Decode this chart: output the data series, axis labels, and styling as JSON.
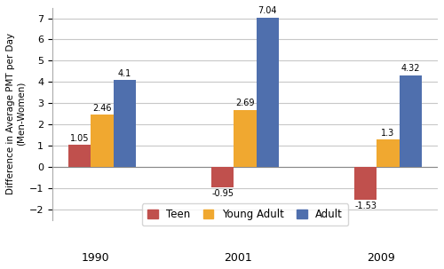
{
  "years": [
    "1990",
    "2001",
    "2009"
  ],
  "groups": [
    "Teen",
    "Young Adult",
    "Adult"
  ],
  "values": {
    "1990": [
      1.05,
      2.46,
      4.1
    ],
    "2001": [
      -0.95,
      2.69,
      7.04
    ],
    "2009": [
      -1.53,
      1.3,
      4.32
    ]
  },
  "bar_colors": [
    "#c0504d",
    "#f0a830",
    "#4f6fad"
  ],
  "ylabel": "Difference in Average PMT per Day\n(Men-Women)",
  "ylim": [
    -2.5,
    7.5
  ],
  "yticks": [
    -2,
    -1,
    0,
    1,
    2,
    3,
    4,
    5,
    6,
    7
  ],
  "legend_labels": [
    "Teen",
    "Young Adult",
    "Adult"
  ],
  "background_color": "#ffffff",
  "bar_width": 0.18,
  "label_fontsize": 7,
  "year_fontsize": 9
}
